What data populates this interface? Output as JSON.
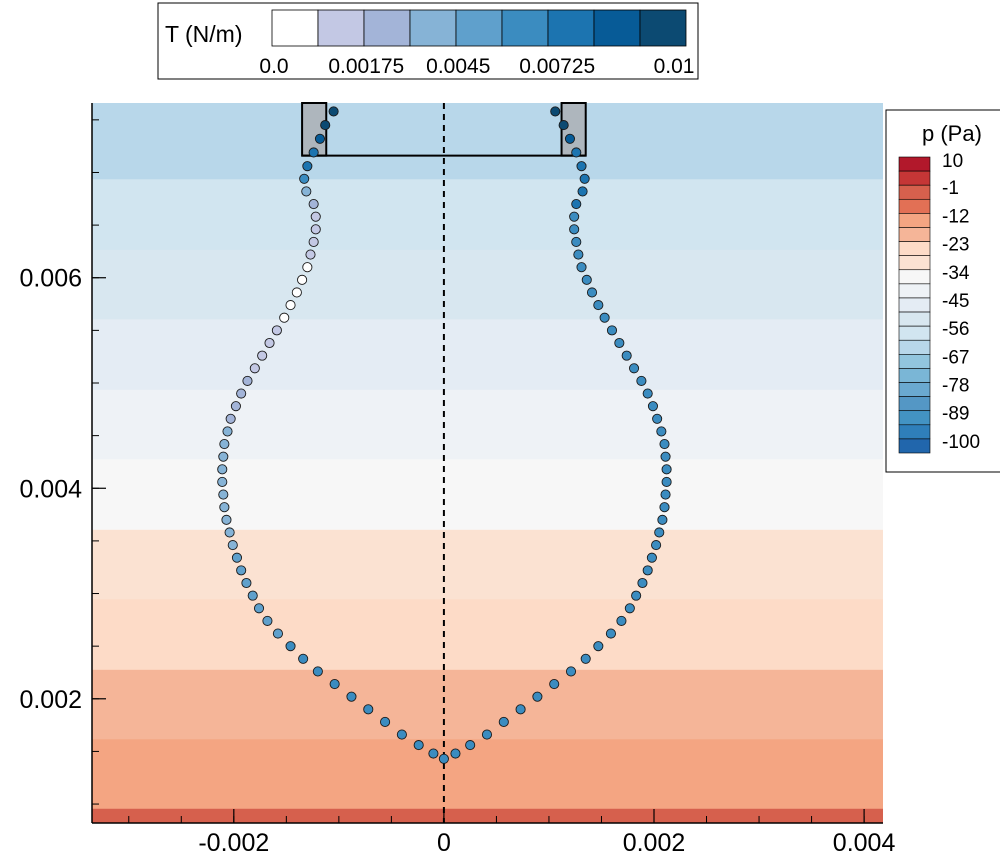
{
  "chart_data": {
    "type": "scatter",
    "title": "",
    "xlabel": "",
    "ylabel": "",
    "xlim": [
      -0.00335,
      0.00418
    ],
    "ylim": [
      0.00082,
      0.00766
    ],
    "x_ticks": [
      -0.002,
      0,
      0.002,
      0.004
    ],
    "x_tick_labels": [
      "-0.002",
      "0",
      "0.002",
      "0.004"
    ],
    "y_ticks": [
      0.002,
      0.004,
      0.006
    ],
    "y_tick_labels": [
      "0.002",
      "0.004",
      "0.006"
    ],
    "grid": false,
    "symmetry_axis_x": 0,
    "pressure_field": {
      "label": "p (Pa)",
      "legend_placement": "right",
      "levels": [
        10,
        4.5,
        -1,
        -6.5,
        -12,
        -17.5,
        -23,
        -28.5,
        -34,
        -39.5,
        -45,
        -50.5,
        -56,
        -61.5,
        -67,
        -72.5,
        -78,
        -83.5,
        -89,
        -94.5,
        -100
      ],
      "level_labels": [
        "10",
        "-1",
        "-12",
        "-23",
        "-34",
        "-45",
        "-56",
        "-67",
        "-78",
        "-89",
        "-100"
      ],
      "colors": [
        "#b2182b",
        "#c53636",
        "#d6604d",
        "#e27055",
        "#f4a582",
        "#f5b598",
        "#fddbc7",
        "#fbe2d2",
        "#f7f7f7",
        "#eef2f6",
        "#e4ecf4",
        "#d8e7f0",
        "#d1e5f0",
        "#b8d7ea",
        "#92c5de",
        "#7ab6d6",
        "#6aa9d0",
        "#5497c5",
        "#4393c3",
        "#2f7fba",
        "#2166ac"
      ],
      "bands": [
        {
          "y0": 0.00082,
          "y1": 0.00096,
          "p": -1
        },
        {
          "y0": 0.00096,
          "y1": 0.00162,
          "p": -12
        },
        {
          "y0": 0.00162,
          "y1": 0.00228,
          "p": -17.5
        },
        {
          "y0": 0.00228,
          "y1": 0.00295,
          "p": -23
        },
        {
          "y0": 0.00295,
          "y1": 0.00361,
          "p": -28.5
        },
        {
          "y0": 0.00361,
          "y1": 0.00428,
          "p": -34
        },
        {
          "y0": 0.00428,
          "y1": 0.00494,
          "p": -39.5
        },
        {
          "y0": 0.00494,
          "y1": 0.00561,
          "p": -45
        },
        {
          "y0": 0.00561,
          "y1": 0.00627,
          "p": -50.5
        },
        {
          "y0": 0.00627,
          "y1": 0.00694,
          "p": -56
        },
        {
          "y0": 0.00694,
          "y1": 0.00766,
          "p": -61.5
        }
      ]
    },
    "tension_legend": {
      "label": "T (N/m)",
      "legend_placement": "top",
      "colors": [
        "#ffffff",
        "#c3c8e4",
        "#a3b4d8",
        "#86b3d6",
        "#5fa0cc",
        "#3b8cc0",
        "#1c74b0",
        "#075b97",
        "#0c4a72"
      ],
      "tick_labels": [
        "0.0",
        "0.00175",
        "0.0045",
        "0.00725",
        "0.01"
      ],
      "max": 0.01
    },
    "series": [
      {
        "side": "left",
        "points": [
          [
            -0.00105,
            0.00758,
            0.01
          ],
          [
            -0.00113,
            0.00745,
            0.0095
          ],
          [
            -0.00118,
            0.00732,
            0.0085
          ],
          [
            -0.00124,
            0.00719,
            0.0078
          ],
          [
            -0.0013,
            0.00706,
            0.0073
          ],
          [
            -0.00133,
            0.00694,
            0.006
          ],
          [
            -0.00131,
            0.00682,
            0.0035
          ],
          [
            -0.00124,
            0.0067,
            0.002
          ],
          [
            -0.00122,
            0.00658,
            0.0018
          ],
          [
            -0.00122,
            0.00646,
            0.0016
          ],
          [
            -0.00124,
            0.00634,
            0.0013
          ],
          [
            -0.00127,
            0.00622,
            0.001
          ],
          [
            -0.0013,
            0.0061,
            0.0006
          ],
          [
            -0.00135,
            0.00598,
            0.0002
          ],
          [
            -0.0014,
            0.00586,
            0.0
          ],
          [
            -0.00146,
            0.00574,
            0.0
          ],
          [
            -0.00152,
            0.00562,
            0.0003
          ],
          [
            -0.00159,
            0.0055,
            0.0008
          ],
          [
            -0.00166,
            0.00538,
            0.0012
          ],
          [
            -0.00173,
            0.00526,
            0.0015
          ],
          [
            -0.0018,
            0.00514,
            0.0018
          ],
          [
            -0.00187,
            0.00502,
            0.0022
          ],
          [
            -0.00193,
            0.0049,
            0.0025
          ],
          [
            -0.00198,
            0.00478,
            0.0028
          ],
          [
            -0.00203,
            0.00466,
            0.003
          ],
          [
            -0.00206,
            0.00454,
            0.0032
          ],
          [
            -0.00209,
            0.00442,
            0.0033
          ],
          [
            -0.0021,
            0.0043,
            0.0034
          ],
          [
            -0.00211,
            0.00418,
            0.0035
          ],
          [
            -0.00211,
            0.00406,
            0.0036
          ],
          [
            -0.0021,
            0.00394,
            0.0037
          ],
          [
            -0.00209,
            0.00382,
            0.0038
          ],
          [
            -0.00207,
            0.0037,
            0.0039
          ],
          [
            -0.00204,
            0.00358,
            0.004
          ],
          [
            -0.00201,
            0.00346,
            0.0042
          ],
          [
            -0.00197,
            0.00334,
            0.0044
          ],
          [
            -0.00193,
            0.00322,
            0.0046
          ],
          [
            -0.00188,
            0.0031,
            0.0048
          ],
          [
            -0.00182,
            0.00298,
            0.005
          ],
          [
            -0.00176,
            0.00286,
            0.0052
          ],
          [
            -0.00168,
            0.00274,
            0.0054
          ],
          [
            -0.00158,
            0.00262,
            0.0056
          ],
          [
            -0.00146,
            0.0025,
            0.0058
          ],
          [
            -0.00134,
            0.00238,
            0.006
          ],
          [
            -0.0012,
            0.00226,
            0.0061
          ],
          [
            -0.00104,
            0.00214,
            0.0062
          ],
          [
            -0.00088,
            0.00202,
            0.0063
          ],
          [
            -0.00072,
            0.0019,
            0.0064
          ],
          [
            -0.00056,
            0.00178,
            0.0065
          ],
          [
            -0.0004,
            0.00166,
            0.0065
          ],
          [
            -0.00024,
            0.00156,
            0.0066
          ],
          [
            -0.0001,
            0.00148,
            0.0066
          ],
          [
            0.0,
            0.00143,
            0.0066
          ]
        ]
      },
      {
        "side": "right",
        "points": [
          [
            0.00106,
            0.00758,
            0.01
          ],
          [
            0.00114,
            0.00745,
            0.0095
          ],
          [
            0.0012,
            0.00732,
            0.0085
          ],
          [
            0.00126,
            0.00719,
            0.0078
          ],
          [
            0.00131,
            0.00706,
            0.0075
          ],
          [
            0.00134,
            0.00694,
            0.0072
          ],
          [
            0.00132,
            0.00682,
            0.007
          ],
          [
            0.00126,
            0.0067,
            0.0069
          ],
          [
            0.00124,
            0.00658,
            0.0068
          ],
          [
            0.00124,
            0.00646,
            0.0068
          ],
          [
            0.00126,
            0.00634,
            0.0067
          ],
          [
            0.00128,
            0.00622,
            0.0067
          ],
          [
            0.00131,
            0.0061,
            0.0067
          ],
          [
            0.00136,
            0.00598,
            0.0066
          ],
          [
            0.00141,
            0.00586,
            0.0066
          ],
          [
            0.00147,
            0.00574,
            0.0066
          ],
          [
            0.00153,
            0.00562,
            0.0066
          ],
          [
            0.0016,
            0.0055,
            0.0066
          ],
          [
            0.00167,
            0.00538,
            0.0066
          ],
          [
            0.00174,
            0.00526,
            0.0066
          ],
          [
            0.00181,
            0.00514,
            0.0066
          ],
          [
            0.00188,
            0.00502,
            0.0066
          ],
          [
            0.00194,
            0.0049,
            0.0066
          ],
          [
            0.00199,
            0.00478,
            0.0066
          ],
          [
            0.00203,
            0.00466,
            0.0066
          ],
          [
            0.00207,
            0.00454,
            0.0066
          ],
          [
            0.0021,
            0.00442,
            0.0066
          ],
          [
            0.00211,
            0.0043,
            0.0066
          ],
          [
            0.00212,
            0.00418,
            0.0066
          ],
          [
            0.00212,
            0.00406,
            0.0066
          ],
          [
            0.00211,
            0.00394,
            0.0066
          ],
          [
            0.0021,
            0.00382,
            0.0066
          ],
          [
            0.00208,
            0.0037,
            0.0066
          ],
          [
            0.00205,
            0.00358,
            0.0066
          ],
          [
            0.00202,
            0.00346,
            0.0066
          ],
          [
            0.00198,
            0.00334,
            0.0066
          ],
          [
            0.00194,
            0.00322,
            0.0066
          ],
          [
            0.00189,
            0.0031,
            0.0066
          ],
          [
            0.00183,
            0.00298,
            0.0066
          ],
          [
            0.00177,
            0.00286,
            0.0066
          ],
          [
            0.00169,
            0.00274,
            0.0066
          ],
          [
            0.00159,
            0.00262,
            0.0066
          ],
          [
            0.00147,
            0.0025,
            0.0066
          ],
          [
            0.00135,
            0.00238,
            0.0066
          ],
          [
            0.00121,
            0.00226,
            0.0066
          ],
          [
            0.00105,
            0.00214,
            0.0066
          ],
          [
            0.00089,
            0.00202,
            0.0066
          ],
          [
            0.00073,
            0.0019,
            0.0066
          ],
          [
            0.00057,
            0.00178,
            0.0066
          ],
          [
            0.00041,
            0.00166,
            0.0066
          ],
          [
            0.00025,
            0.00156,
            0.0066
          ],
          [
            0.00011,
            0.00148,
            0.0066
          ]
        ]
      }
    ],
    "walls": [
      {
        "x0": -0.00135,
        "x1": -0.00112,
        "y0": 0.00716,
        "y1": 0.00766
      },
      {
        "x0": 0.00112,
        "x1": 0.00135,
        "y0": 0.00716,
        "y1": 0.00766
      }
    ],
    "wall_fill": "#aeb6bd",
    "outlet_y": 0.00716
  }
}
